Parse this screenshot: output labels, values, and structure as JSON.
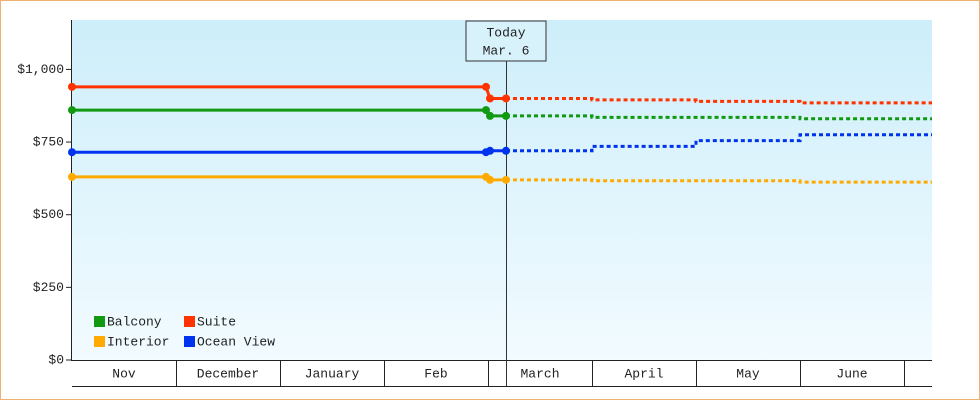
{
  "chart_data": {
    "type": "line",
    "categories": [
      "Nov",
      "December",
      "January",
      "Feb",
      "March",
      "April",
      "May",
      "June"
    ],
    "today": {
      "label": "Today",
      "date": "Mar. 6"
    },
    "ylim": [
      0,
      1170
    ],
    "yticks": [
      {
        "value": 0,
        "label": "$0"
      },
      {
        "value": 250,
        "label": "$250"
      },
      {
        "value": 500,
        "label": "$500"
      },
      {
        "value": 750,
        "label": "$750"
      },
      {
        "value": 1000,
        "label": "$1,000"
      }
    ],
    "series": [
      {
        "name": "Balcony",
        "color": "#119911",
        "values": [
          860,
          860,
          860,
          860,
          null,
          null,
          null,
          null
        ],
        "forecast": [
          null,
          null,
          null,
          null,
          840,
          835,
          835,
          830
        ]
      },
      {
        "name": "Suite",
        "color": "#ff3300",
        "values": [
          940,
          940,
          940,
          940,
          null,
          null,
          null,
          null
        ],
        "forecast": [
          null,
          null,
          null,
          null,
          900,
          895,
          890,
          885
        ]
      },
      {
        "name": "Interior",
        "color": "#ffaa00",
        "values": [
          630,
          630,
          630,
          630,
          null,
          null,
          null,
          null
        ],
        "forecast": [
          null,
          null,
          null,
          null,
          620,
          617,
          617,
          612
        ]
      },
      {
        "name": "Ocean View",
        "color": "#0033ee",
        "values": [
          715,
          715,
          715,
          715,
          null,
          null,
          null,
          null
        ],
        "forecast": [
          null,
          null,
          null,
          null,
          720,
          735,
          755,
          775
        ]
      }
    ]
  }
}
